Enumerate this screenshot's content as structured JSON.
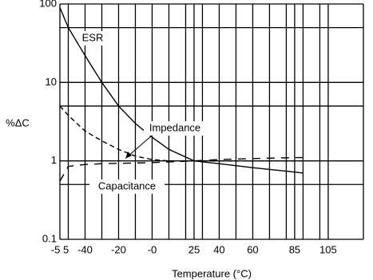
{
  "chart_data": {
    "type": "line",
    "y_label": "%ΔC",
    "x_label": "Temperature (°C)",
    "log_y": true,
    "ylim": [
      0.1,
      100
    ],
    "yticks": [
      0.1,
      1,
      10,
      100
    ],
    "ygrid": [
      0.1,
      0.5,
      1,
      5,
      10,
      50,
      100
    ],
    "xlim": [
      -55,
      126
    ],
    "xticks": [
      {
        "value": -55,
        "label": "-5 5"
      },
      -40,
      -20,
      {
        "value": 0,
        "label": "-0"
      },
      25,
      40,
      60,
      85,
      105
    ],
    "xgrid": [
      -55,
      -50,
      -40,
      -30,
      -20,
      -10,
      0,
      10,
      20,
      25,
      30,
      40,
      50,
      60,
      70,
      80,
      85,
      90,
      100,
      105,
      126
    ],
    "x": [
      -55,
      -50,
      -40,
      -30,
      -20,
      -10,
      0,
      10,
      25,
      40,
      60,
      85,
      90
    ],
    "series": [
      {
        "name": "ESR",
        "color": "#000",
        "dash": "none",
        "values": [
          90,
          50,
          22,
          10,
          5,
          3,
          2,
          1.4,
          1,
          0.92,
          0.82,
          0.72,
          0.7
        ]
      },
      {
        "name": "Impedance",
        "color": "#000",
        "dash": "6,4",
        "values": [
          5,
          3.8,
          2.4,
          1.8,
          1.4,
          1.15,
          1.04,
          1,
          1,
          1,
          1,
          1,
          1
        ]
      },
      {
        "name": "Capacitance",
        "color": "#000",
        "dash": "10,8",
        "values": [
          0.55,
          0.85,
          0.9,
          0.92,
          0.93,
          0.94,
          0.95,
          0.97,
          1,
          1.04,
          1.07,
          1.1,
          1.1
        ]
      }
    ]
  }
}
